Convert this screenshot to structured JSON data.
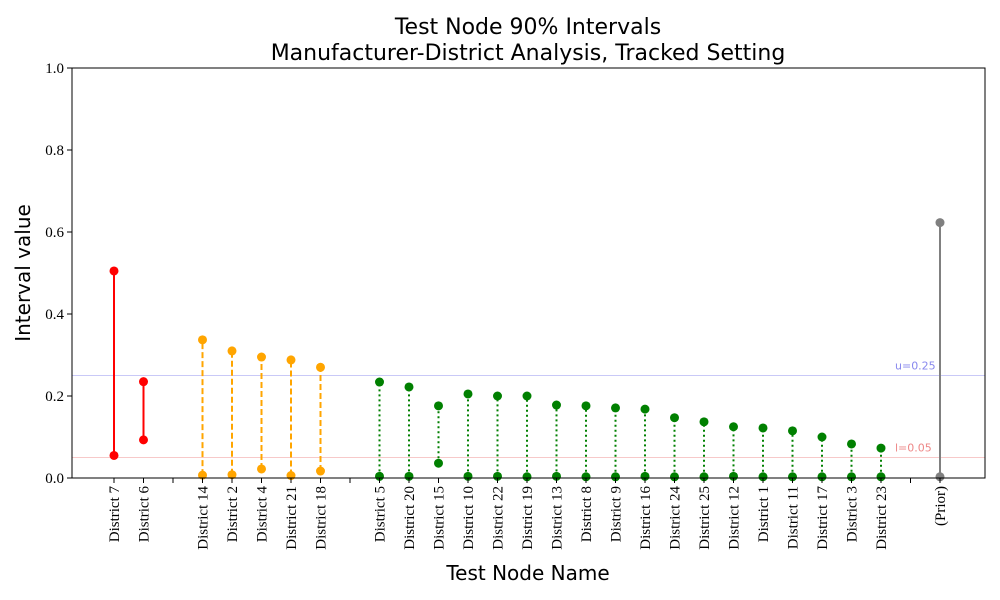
{
  "chart_data": {
    "type": "interval",
    "title_line1": "Test Node 90% Intervals",
    "title_line2": "Manufacturer-District Analysis, Tracked Setting",
    "xlabel": "Test Node Name",
    "ylabel": "Interval value",
    "ylim": [
      0,
      1
    ],
    "yticks": [
      "0.0",
      "0.2",
      "0.4",
      "0.6",
      "0.8",
      "1.0"
    ],
    "ytick_values": [
      0,
      0.2,
      0.4,
      0.6,
      0.8,
      1.0
    ],
    "colors": {
      "red": "#ff0000",
      "orange": "#ffa500",
      "green": "#008000",
      "gray": "#808080"
    },
    "reference_lines": [
      {
        "label": "u=0.25",
        "value": 0.25,
        "color": "#8888ee"
      },
      {
        "label": "l=0.05",
        "value": 0.05,
        "color": "#ee8888"
      }
    ],
    "groups": [
      {
        "color": "red",
        "style": "solid",
        "nodes": [
          {
            "name": "District 7",
            "low": 0.055,
            "high": 0.505
          },
          {
            "name": "District 6",
            "low": 0.093,
            "high": 0.235
          }
        ]
      },
      {
        "color": "orange",
        "style": "dashed",
        "nodes": [
          {
            "name": "District 14",
            "low": 0.007,
            "high": 0.337
          },
          {
            "name": "District 2",
            "low": 0.008,
            "high": 0.31
          },
          {
            "name": "District 4",
            "low": 0.022,
            "high": 0.295
          },
          {
            "name": "District 21",
            "low": 0.006,
            "high": 0.288
          },
          {
            "name": "District 18",
            "low": 0.017,
            "high": 0.27
          }
        ]
      },
      {
        "color": "green",
        "style": "dotted",
        "nodes": [
          {
            "name": "District 5",
            "low": 0.004,
            "high": 0.234
          },
          {
            "name": "District 20",
            "low": 0.004,
            "high": 0.222
          },
          {
            "name": "District 15",
            "low": 0.036,
            "high": 0.176
          },
          {
            "name": "District 10",
            "low": 0.004,
            "high": 0.205
          },
          {
            "name": "District 22",
            "low": 0.004,
            "high": 0.2
          },
          {
            "name": "District 19",
            "low": 0.003,
            "high": 0.2
          },
          {
            "name": "District 13",
            "low": 0.004,
            "high": 0.178
          },
          {
            "name": "District 8",
            "low": 0.003,
            "high": 0.176
          },
          {
            "name": "District 9",
            "low": 0.003,
            "high": 0.171
          },
          {
            "name": "District 16",
            "low": 0.004,
            "high": 0.168
          },
          {
            "name": "District 24",
            "low": 0.003,
            "high": 0.147
          },
          {
            "name": "District 25",
            "low": 0.003,
            "high": 0.137
          },
          {
            "name": "District 12",
            "low": 0.004,
            "high": 0.125
          },
          {
            "name": "District 1",
            "low": 0.003,
            "high": 0.122
          },
          {
            "name": "District 11",
            "low": 0.003,
            "high": 0.115
          },
          {
            "name": "District 17",
            "low": 0.003,
            "high": 0.1
          },
          {
            "name": "District 3",
            "low": 0.003,
            "high": 0.083
          },
          {
            "name": "District 23",
            "low": 0.003,
            "high": 0.073
          }
        ]
      },
      {
        "color": "gray",
        "style": "solid",
        "nodes": [
          {
            "name": "(Prior)",
            "low": 0.003,
            "high": 0.623
          }
        ]
      }
    ]
  }
}
